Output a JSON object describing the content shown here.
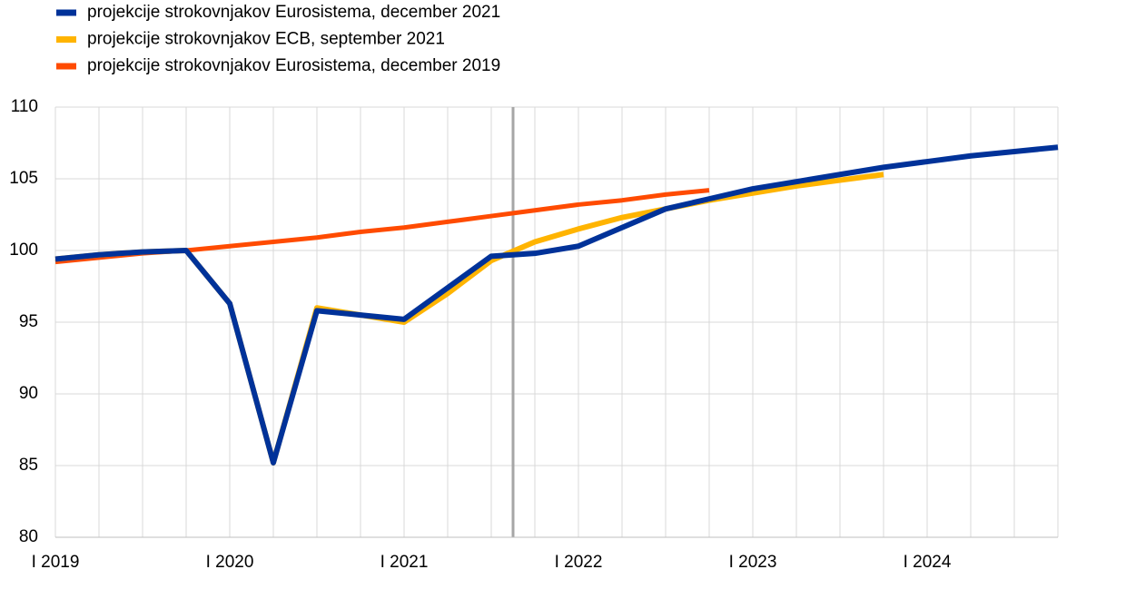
{
  "chart_data": {
    "type": "line",
    "categories": [
      "I 2019",
      null,
      null,
      null,
      "I 2020",
      null,
      null,
      null,
      "I 2021",
      null,
      null,
      null,
      "I 2022",
      null,
      null,
      null,
      "I 2023",
      null,
      null,
      null,
      "I 2024",
      null,
      null,
      null
    ],
    "series": [
      {
        "name": "projekcije strokovnjakov Eurosistema, december 2021",
        "color": "#003299",
        "values": [
          99.4,
          99.7,
          99.9,
          100.0,
          96.3,
          85.2,
          95.8,
          95.5,
          95.2,
          97.4,
          99.6,
          99.8,
          100.3,
          101.6,
          102.9,
          103.6,
          104.3,
          104.8,
          105.3,
          105.8,
          106.2,
          106.6,
          106.9,
          107.2
        ]
      },
      {
        "name": "projekcije strokovnjakov ECB, september 2021",
        "color": "#ffb400",
        "values": [
          99.4,
          99.7,
          99.9,
          100.0,
          96.3,
          85.2,
          96.0,
          95.5,
          95.0,
          97.0,
          99.3,
          100.6,
          101.5,
          102.3,
          102.9,
          103.5,
          104.0,
          104.5,
          104.9,
          105.3,
          null,
          null,
          null,
          null
        ]
      },
      {
        "name": "projekcije strokovnjakov Eurosistema, december 2019",
        "color": "#ff4b00",
        "values": [
          99.2,
          99.5,
          99.8,
          100.0,
          100.3,
          100.6,
          100.9,
          101.3,
          101.6,
          102.0,
          102.4,
          102.8,
          103.2,
          103.5,
          103.9,
          104.2,
          null,
          null,
          null,
          null,
          null,
          null,
          null,
          null
        ]
      }
    ],
    "ylim": [
      80,
      110
    ],
    "yticks": [
      80,
      85,
      90,
      95,
      100,
      105,
      110
    ],
    "grid": true
  }
}
